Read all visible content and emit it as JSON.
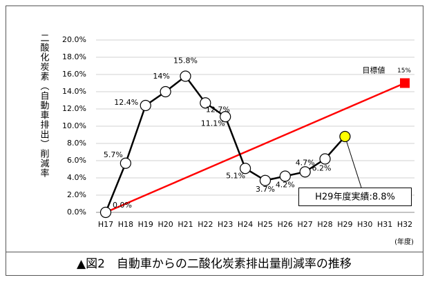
{
  "chart_data": {
    "type": "line",
    "y_label": "二酸化炭素（自動車排出）削減率",
    "x_unit": "(年度)",
    "caption": "▲図2　自動車からの二酸化炭素排出量削減率の推移",
    "categories": [
      "H17",
      "H18",
      "H19",
      "H20",
      "H21",
      "H22",
      "H23",
      "H24",
      "H25",
      "H26",
      "H27",
      "H28",
      "H29",
      "H30",
      "H31",
      "H32"
    ],
    "series": [
      {
        "color": "#000000",
        "marker_fill": "#ffffff",
        "values": [
          0,
          5.7,
          12.4,
          14,
          15.8,
          12.7,
          11.1,
          5.1,
          3.7,
          4.2,
          4.7,
          6.2,
          8.8,
          null,
          null,
          null
        ],
        "value_labels": [
          "0.0%",
          "5.7%",
          "12.4%",
          "14%",
          "15.8%",
          "12.7%",
          "11.1%",
          "5.1%",
          "3.7%",
          "4.2%",
          "4.7%",
          "6.2%",
          null,
          null,
          null,
          null
        ]
      },
      {
        "color": "#ff0000",
        "values": [
          0,
          1,
          2,
          3,
          4,
          5,
          6,
          7,
          8,
          9,
          10,
          11,
          12,
          13,
          14,
          15
        ],
        "value_labels": [
          null,
          null,
          null,
          null,
          null,
          null,
          null,
          null,
          null,
          null,
          null,
          null,
          null,
          null,
          null,
          "15%"
        ]
      }
    ],
    "target_label": "目標値",
    "highlight": {
      "x": "H29",
      "color": "#ffff00",
      "text": "H29年度実績:8.8%"
    },
    "ylim": [
      0,
      20
    ],
    "yticks": [
      {
        "value": 0,
        "label": "0.0%"
      },
      {
        "value": 2,
        "label": "2.0%"
      },
      {
        "value": 4,
        "label": "4.0%"
      },
      {
        "value": 6,
        "label": "6.0%"
      },
      {
        "value": 8,
        "label": "8.0%"
      },
      {
        "value": 10,
        "label": "10.0%"
      },
      {
        "value": 12,
        "label": "12.0%"
      },
      {
        "value": 14,
        "label": "14.0%"
      },
      {
        "value": 16,
        "label": "16.0%"
      },
      {
        "value": 18,
        "label": "18.0%"
      },
      {
        "value": 20,
        "label": "20.0%"
      }
    ],
    "grid": true
  }
}
